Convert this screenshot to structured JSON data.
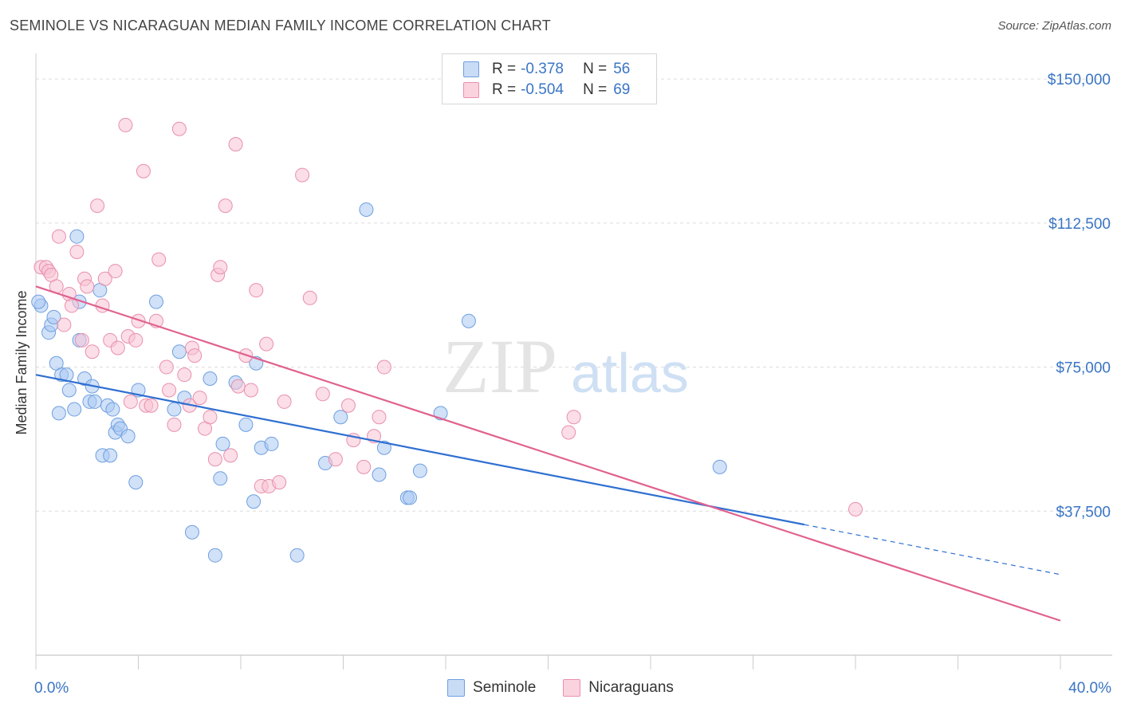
{
  "header": {
    "title": "SEMINOLE VS NICARAGUAN MEDIAN FAMILY INCOME CORRELATION CHART",
    "source": "Source: ZipAtlas.com"
  },
  "legend": {
    "rows": [
      {
        "r_label": "R =",
        "r_value": "-0.378",
        "n_label": "N =",
        "n_value": "56",
        "color": "#a9c8f2",
        "border": "#6f9fe0"
      },
      {
        "r_label": "R =",
        "r_value": "-0.504",
        "n_label": "N =",
        "n_value": "69",
        "color": "#f7c2d3",
        "border": "#e98fad"
      }
    ]
  },
  "watermark": {
    "zip": "ZIP",
    "atlas": "atlas"
  },
  "chart_data": {
    "type": "scatter",
    "title": "SEMINOLE VS NICARAGUAN MEDIAN FAMILY INCOME CORRELATION CHART",
    "xlabel": "",
    "ylabel": "Median Family Income",
    "xlim": [
      0,
      40
    ],
    "ylim": [
      0,
      155000
    ],
    "x_tick_labels": [
      "0.0%",
      "40.0%"
    ],
    "y_ticks": [
      37500,
      75000,
      112500,
      150000
    ],
    "y_tick_labels": [
      "$37,500",
      "$75,000",
      "$112,500",
      "$150,000"
    ],
    "grid": true,
    "series": [
      {
        "name": "Seminole",
        "color": "#a9c8f2",
        "stroke": "#6f9fe0",
        "line_color": "#2f6fd1",
        "trend": {
          "x0": 0,
          "y0": 73000,
          "x1": 30,
          "y1": 34000,
          "dash_x1": 40,
          "dash_y1": 21000
        },
        "points": [
          [
            0.2,
            91
          ],
          [
            0.5,
            84
          ],
          [
            0.6,
            86
          ],
          [
            0.7,
            88
          ],
          [
            0.8,
            76
          ],
          [
            1.0,
            73
          ],
          [
            1.2,
            73
          ],
          [
            1.3,
            69
          ],
          [
            0.9,
            63
          ],
          [
            1.5,
            64
          ],
          [
            1.6,
            109
          ],
          [
            1.7,
            92
          ],
          [
            1.7,
            82
          ],
          [
            1.9,
            72
          ],
          [
            2.1,
            66
          ],
          [
            2.2,
            70
          ],
          [
            2.3,
            66
          ],
          [
            2.6,
            52
          ],
          [
            2.8,
            65
          ],
          [
            2.9,
            52
          ],
          [
            3.0,
            64
          ],
          [
            3.1,
            58
          ],
          [
            3.2,
            60
          ],
          [
            3.3,
            59
          ],
          [
            3.6,
            57
          ],
          [
            3.9,
            45
          ],
          [
            4.0,
            69
          ],
          [
            4.7,
            92
          ],
          [
            5.4,
            64
          ],
          [
            5.6,
            79
          ],
          [
            5.8,
            67
          ],
          [
            6.1,
            32
          ],
          [
            6.8,
            72
          ],
          [
            7.0,
            26
          ],
          [
            7.2,
            46
          ],
          [
            7.3,
            55
          ],
          [
            7.8,
            71
          ],
          [
            8.2,
            60
          ],
          [
            8.5,
            40
          ],
          [
            8.6,
            76
          ],
          [
            8.8,
            54
          ],
          [
            9.2,
            55
          ],
          [
            10.2,
            26
          ],
          [
            11.3,
            50
          ],
          [
            11.9,
            62
          ],
          [
            12.9,
            116
          ],
          [
            13.4,
            47
          ],
          [
            13.6,
            54
          ],
          [
            14.5,
            41
          ],
          [
            14.6,
            41
          ],
          [
            15.0,
            48
          ],
          [
            15.8,
            63
          ],
          [
            16.9,
            87
          ],
          [
            26.7,
            49
          ],
          [
            0.1,
            92
          ],
          [
            2.5,
            95
          ]
        ]
      },
      {
        "name": "Nicaraguans",
        "color": "#f7c2d3",
        "stroke": "#e98fad",
        "line_color": "#e0628f",
        "trend": {
          "x0": 0,
          "y0": 96000,
          "x1": 40,
          "y1": 9000
        },
        "points": [
          [
            0.2,
            101
          ],
          [
            0.4,
            101
          ],
          [
            0.5,
            100
          ],
          [
            0.6,
            99
          ],
          [
            0.8,
            96
          ],
          [
            0.9,
            109
          ],
          [
            1.1,
            86
          ],
          [
            1.3,
            94
          ],
          [
            1.4,
            91
          ],
          [
            1.6,
            105
          ],
          [
            1.8,
            82
          ],
          [
            1.9,
            98
          ],
          [
            2.0,
            96
          ],
          [
            2.2,
            79
          ],
          [
            2.4,
            117
          ],
          [
            2.6,
            91
          ],
          [
            2.7,
            98
          ],
          [
            2.9,
            82
          ],
          [
            3.1,
            100
          ],
          [
            3.2,
            80
          ],
          [
            3.5,
            138
          ],
          [
            3.6,
            83
          ],
          [
            3.7,
            66
          ],
          [
            3.9,
            82
          ],
          [
            4.0,
            87
          ],
          [
            4.2,
            126
          ],
          [
            4.3,
            65
          ],
          [
            4.5,
            65
          ],
          [
            4.7,
            87
          ],
          [
            4.8,
            103
          ],
          [
            5.1,
            75
          ],
          [
            5.2,
            69
          ],
          [
            5.4,
            60
          ],
          [
            5.6,
            137
          ],
          [
            5.8,
            73
          ],
          [
            6.0,
            65
          ],
          [
            6.1,
            80
          ],
          [
            6.2,
            78
          ],
          [
            6.4,
            67
          ],
          [
            6.6,
            59
          ],
          [
            6.8,
            62
          ],
          [
            7.0,
            51
          ],
          [
            7.1,
            99
          ],
          [
            7.2,
            101
          ],
          [
            7.4,
            117
          ],
          [
            7.6,
            52
          ],
          [
            7.8,
            133
          ],
          [
            7.9,
            70
          ],
          [
            8.2,
            78
          ],
          [
            8.4,
            69
          ],
          [
            8.6,
            95
          ],
          [
            8.8,
            44
          ],
          [
            9.0,
            81
          ],
          [
            9.1,
            44
          ],
          [
            9.5,
            45
          ],
          [
            9.7,
            66
          ],
          [
            10.4,
            125
          ],
          [
            10.7,
            93
          ],
          [
            11.2,
            68
          ],
          [
            11.7,
            51
          ],
          [
            12.2,
            65
          ],
          [
            12.4,
            56
          ],
          [
            12.8,
            49
          ],
          [
            13.2,
            57
          ],
          [
            13.4,
            62
          ],
          [
            13.6,
            75
          ],
          [
            20.8,
            58
          ],
          [
            21.0,
            62
          ],
          [
            32.0,
            38
          ]
        ]
      }
    ]
  },
  "bottom_legend": [
    {
      "label": "Seminole",
      "color": "#a9c8f2",
      "border": "#6f9fe0"
    },
    {
      "label": "Nicaraguans",
      "color": "#f7c2d3",
      "border": "#e98fad"
    }
  ]
}
